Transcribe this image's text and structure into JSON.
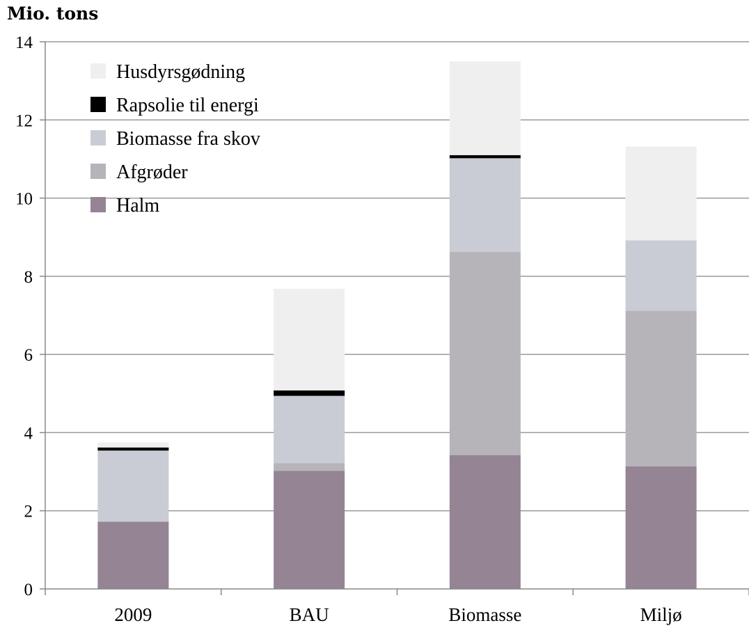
{
  "chart_data": {
    "type": "bar",
    "stacked": true,
    "ylabel": "Mio. tons",
    "ylim": [
      0,
      14
    ],
    "yticks": [
      0,
      2,
      4,
      6,
      8,
      10,
      12,
      14
    ],
    "grid": true,
    "legend_position": "top-left",
    "categories": [
      "2009",
      "BAU",
      "Biomasse",
      "Miljø"
    ],
    "series": [
      {
        "name": "Halm",
        "color": "#948494",
        "values": [
          1.72,
          3.02,
          3.42,
          3.14
        ]
      },
      {
        "name": "Afgrøder",
        "color": "#b6b3b9",
        "values": [
          0,
          0.2,
          5.2,
          3.98
        ]
      },
      {
        "name": "Biomasse fra skov",
        "color": "#c9ccd5",
        "values": [
          1.82,
          1.72,
          2.4,
          1.8
        ]
      },
      {
        "name": "Rapsolie til energi",
        "color": "#000000",
        "values": [
          0.08,
          0.14,
          0.08,
          0
        ]
      },
      {
        "name": "Husdyrsgødning",
        "color": "#efeff0",
        "values": [
          0.13,
          2.6,
          2.4,
          2.4
        ]
      }
    ]
  }
}
